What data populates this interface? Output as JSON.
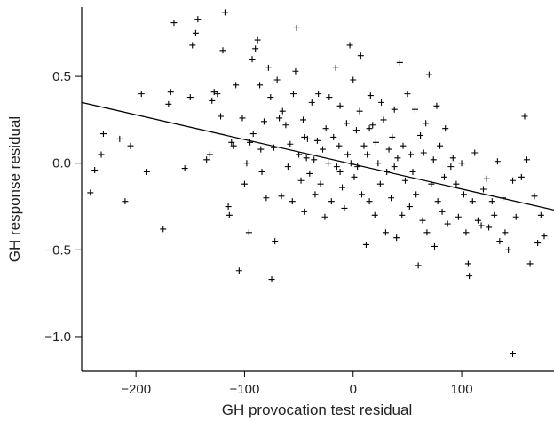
{
  "chart_data": {
    "type": "scatter",
    "title": "",
    "xlabel": "GH provocation test residual",
    "ylabel": "GH response residual",
    "xlim": [
      -250,
      185
    ],
    "ylim": [
      -1.2,
      0.9
    ],
    "xticks": [
      -200,
      -100,
      0,
      100
    ],
    "yticks": [
      -1.0,
      -0.5,
      0.0,
      0.5
    ],
    "xtick_labels": [
      "−200",
      "−100",
      "0",
      "100"
    ],
    "ytick_labels": [
      "−1.0",
      "−0.5",
      "0.0",
      "0.5"
    ],
    "grid": false,
    "legend": "none",
    "regression_line": {
      "x": [
        -250,
        185
      ],
      "y": [
        0.35,
        -0.27
      ]
    },
    "series": [
      {
        "marker": "+",
        "points": [
          [
            -242,
            -0.17
          ],
          [
            -238,
            -0.04
          ],
          [
            -232,
            0.05
          ],
          [
            -230,
            0.17
          ],
          [
            -215,
            0.14
          ],
          [
            -210,
            -0.22
          ],
          [
            -205,
            0.1
          ],
          [
            -195,
            0.4
          ],
          [
            -190,
            -0.05
          ],
          [
            -175,
            -0.38
          ],
          [
            -170,
            0.34
          ],
          [
            -168,
            0.41
          ],
          [
            -165,
            0.81
          ],
          [
            -155,
            -0.03
          ],
          [
            -150,
            0.38
          ],
          [
            -148,
            0.68
          ],
          [
            -145,
            0.75
          ],
          [
            -143,
            0.83
          ],
          [
            -135,
            0.02
          ],
          [
            -132,
            0.05
          ],
          [
            -130,
            0.36
          ],
          [
            -128,
            0.41
          ],
          [
            -125,
            0.4
          ],
          [
            -122,
            0.27
          ],
          [
            -120,
            0.65
          ],
          [
            -118,
            0.87
          ],
          [
            -115,
            -0.25
          ],
          [
            -114,
            -0.3
          ],
          [
            -112,
            0.12
          ],
          [
            -110,
            0.1
          ],
          [
            -108,
            0.45
          ],
          [
            -105,
            -0.62
          ],
          [
            -102,
            0.26
          ],
          [
            -100,
            -0.12
          ],
          [
            -98,
            0.0
          ],
          [
            -96,
            -0.4
          ],
          [
            -95,
            0.12
          ],
          [
            -93,
            0.6
          ],
          [
            -92,
            0.17
          ],
          [
            -90,
            0.66
          ],
          [
            -88,
            0.71
          ],
          [
            -86,
            0.45
          ],
          [
            -85,
            0.08
          ],
          [
            -84,
            -0.05
          ],
          [
            -82,
            0.24
          ],
          [
            -80,
            -0.2
          ],
          [
            -78,
            0.55
          ],
          [
            -76,
            0.38
          ],
          [
            -75,
            -0.67
          ],
          [
            -73,
            0.09
          ],
          [
            -72,
            -0.45
          ],
          [
            -70,
            0.48
          ],
          [
            -68,
            0.26
          ],
          [
            -66,
            -0.19
          ],
          [
            -65,
            0.3
          ],
          [
            -62,
            0.22
          ],
          [
            -60,
            -0.02
          ],
          [
            -58,
            0.11
          ],
          [
            -56,
            -0.22
          ],
          [
            -55,
            0.4
          ],
          [
            -53,
            0.53
          ],
          [
            -52,
            0.78
          ],
          [
            -50,
            0.05
          ],
          [
            -48,
            -0.1
          ],
          [
            -46,
            0.25
          ],
          [
            -45,
            -0.28
          ],
          [
            -43,
            0.03
          ],
          [
            -42,
            0.14
          ],
          [
            -40,
            -0.06
          ],
          [
            -38,
            0.35
          ],
          [
            -36,
            0.02
          ],
          [
            -35,
            -0.18
          ],
          [
            -33,
            0.13
          ],
          [
            -32,
            0.4
          ],
          [
            -30,
            -0.12
          ],
          [
            -28,
            0.08
          ],
          [
            -26,
            -0.31
          ],
          [
            -25,
            0.2
          ],
          [
            -23,
            0.0
          ],
          [
            -22,
            0.38
          ],
          [
            -20,
            -0.22
          ],
          [
            -18,
            0.15
          ],
          [
            -16,
            0.55
          ],
          [
            -15,
            -0.02
          ],
          [
            -13,
            0.1
          ],
          [
            -12,
            0.33
          ],
          [
            -10,
            -0.14
          ],
          [
            -8,
            -0.26
          ],
          [
            -6,
            0.23
          ],
          [
            -5,
            0.05
          ],
          [
            -3,
            0.68
          ],
          [
            -2,
            0.0
          ],
          [
            0,
            0.48
          ],
          [
            1,
            -0.08
          ],
          [
            3,
            0.19
          ],
          [
            4,
            -0.02
          ],
          [
            6,
            0.3
          ],
          [
            7,
            0.62
          ],
          [
            8,
            -0.18
          ],
          [
            10,
            0.1
          ],
          [
            12,
            -0.47
          ],
          [
            13,
            0.05
          ],
          [
            15,
            -0.22
          ],
          [
            16,
            0.39
          ],
          [
            18,
            0.22
          ],
          [
            20,
            -0.3
          ],
          [
            21,
            0.12
          ],
          [
            23,
            0.0
          ],
          [
            25,
            -0.12
          ],
          [
            26,
            0.35
          ],
          [
            28,
            0.25
          ],
          [
            30,
            -0.4
          ],
          [
            31,
            -0.05
          ],
          [
            33,
            0.08
          ],
          [
            35,
            -0.2
          ],
          [
            36,
            0.15
          ],
          [
            38,
            0.31
          ],
          [
            40,
            -0.43
          ],
          [
            41,
            0.03
          ],
          [
            43,
            0.58
          ],
          [
            45,
            -0.3
          ],
          [
            46,
            0.1
          ],
          [
            48,
            -0.1
          ],
          [
            50,
            0.4
          ],
          [
            52,
            -0.25
          ],
          [
            53,
            0.05
          ],
          [
            55,
            -0.05
          ],
          [
            57,
            0.31
          ],
          [
            58,
            -0.18
          ],
          [
            60,
            -0.59
          ],
          [
            62,
            0.16
          ],
          [
            64,
            -0.33
          ],
          [
            65,
            0.06
          ],
          [
            67,
            0.23
          ],
          [
            68,
            -0.4
          ],
          [
            70,
            0.51
          ],
          [
            72,
            -0.12
          ],
          [
            74,
            0.02
          ],
          [
            75,
            -0.48
          ],
          [
            77,
            0.33
          ],
          [
            78,
            -0.22
          ],
          [
            80,
            0.1
          ],
          [
            82,
            -0.28
          ],
          [
            84,
            -0.08
          ],
          [
            85,
            0.2
          ],
          [
            87,
            -0.35
          ],
          [
            90,
            -0.02
          ],
          [
            92,
            0.03
          ],
          [
            95,
            -0.12
          ],
          [
            97,
            -0.31
          ],
          [
            100,
            0.0
          ],
          [
            102,
            -0.18
          ],
          [
            104,
            -0.4
          ],
          [
            106,
            -0.58
          ],
          [
            107,
            -0.65
          ],
          [
            110,
            -0.22
          ],
          [
            112,
            0.06
          ],
          [
            115,
            -0.33
          ],
          [
            118,
            -0.36
          ],
          [
            120,
            -0.15
          ],
          [
            123,
            -0.09
          ],
          [
            125,
            -0.37
          ],
          [
            128,
            -0.22
          ],
          [
            130,
            -0.3
          ],
          [
            133,
            0.01
          ],
          [
            135,
            -0.45
          ],
          [
            138,
            -0.2
          ],
          [
            140,
            -0.4
          ],
          [
            143,
            -0.5
          ],
          [
            147,
            -1.1
          ],
          [
            150,
            -0.31
          ],
          [
            155,
            -0.08
          ],
          [
            158,
            0.27
          ],
          [
            160,
            0.02
          ],
          [
            163,
            -0.58
          ],
          [
            167,
            -0.19
          ],
          [
            170,
            -0.46
          ],
          [
            173,
            -0.3
          ],
          [
            176,
            -0.42
          ],
          [
            147,
            -0.1
          ],
          [
            -12,
            -0.05
          ],
          [
            -45,
            0.15
          ],
          [
            38,
            -0.02
          ],
          [
            15,
            0.2
          ]
        ]
      }
    ]
  }
}
